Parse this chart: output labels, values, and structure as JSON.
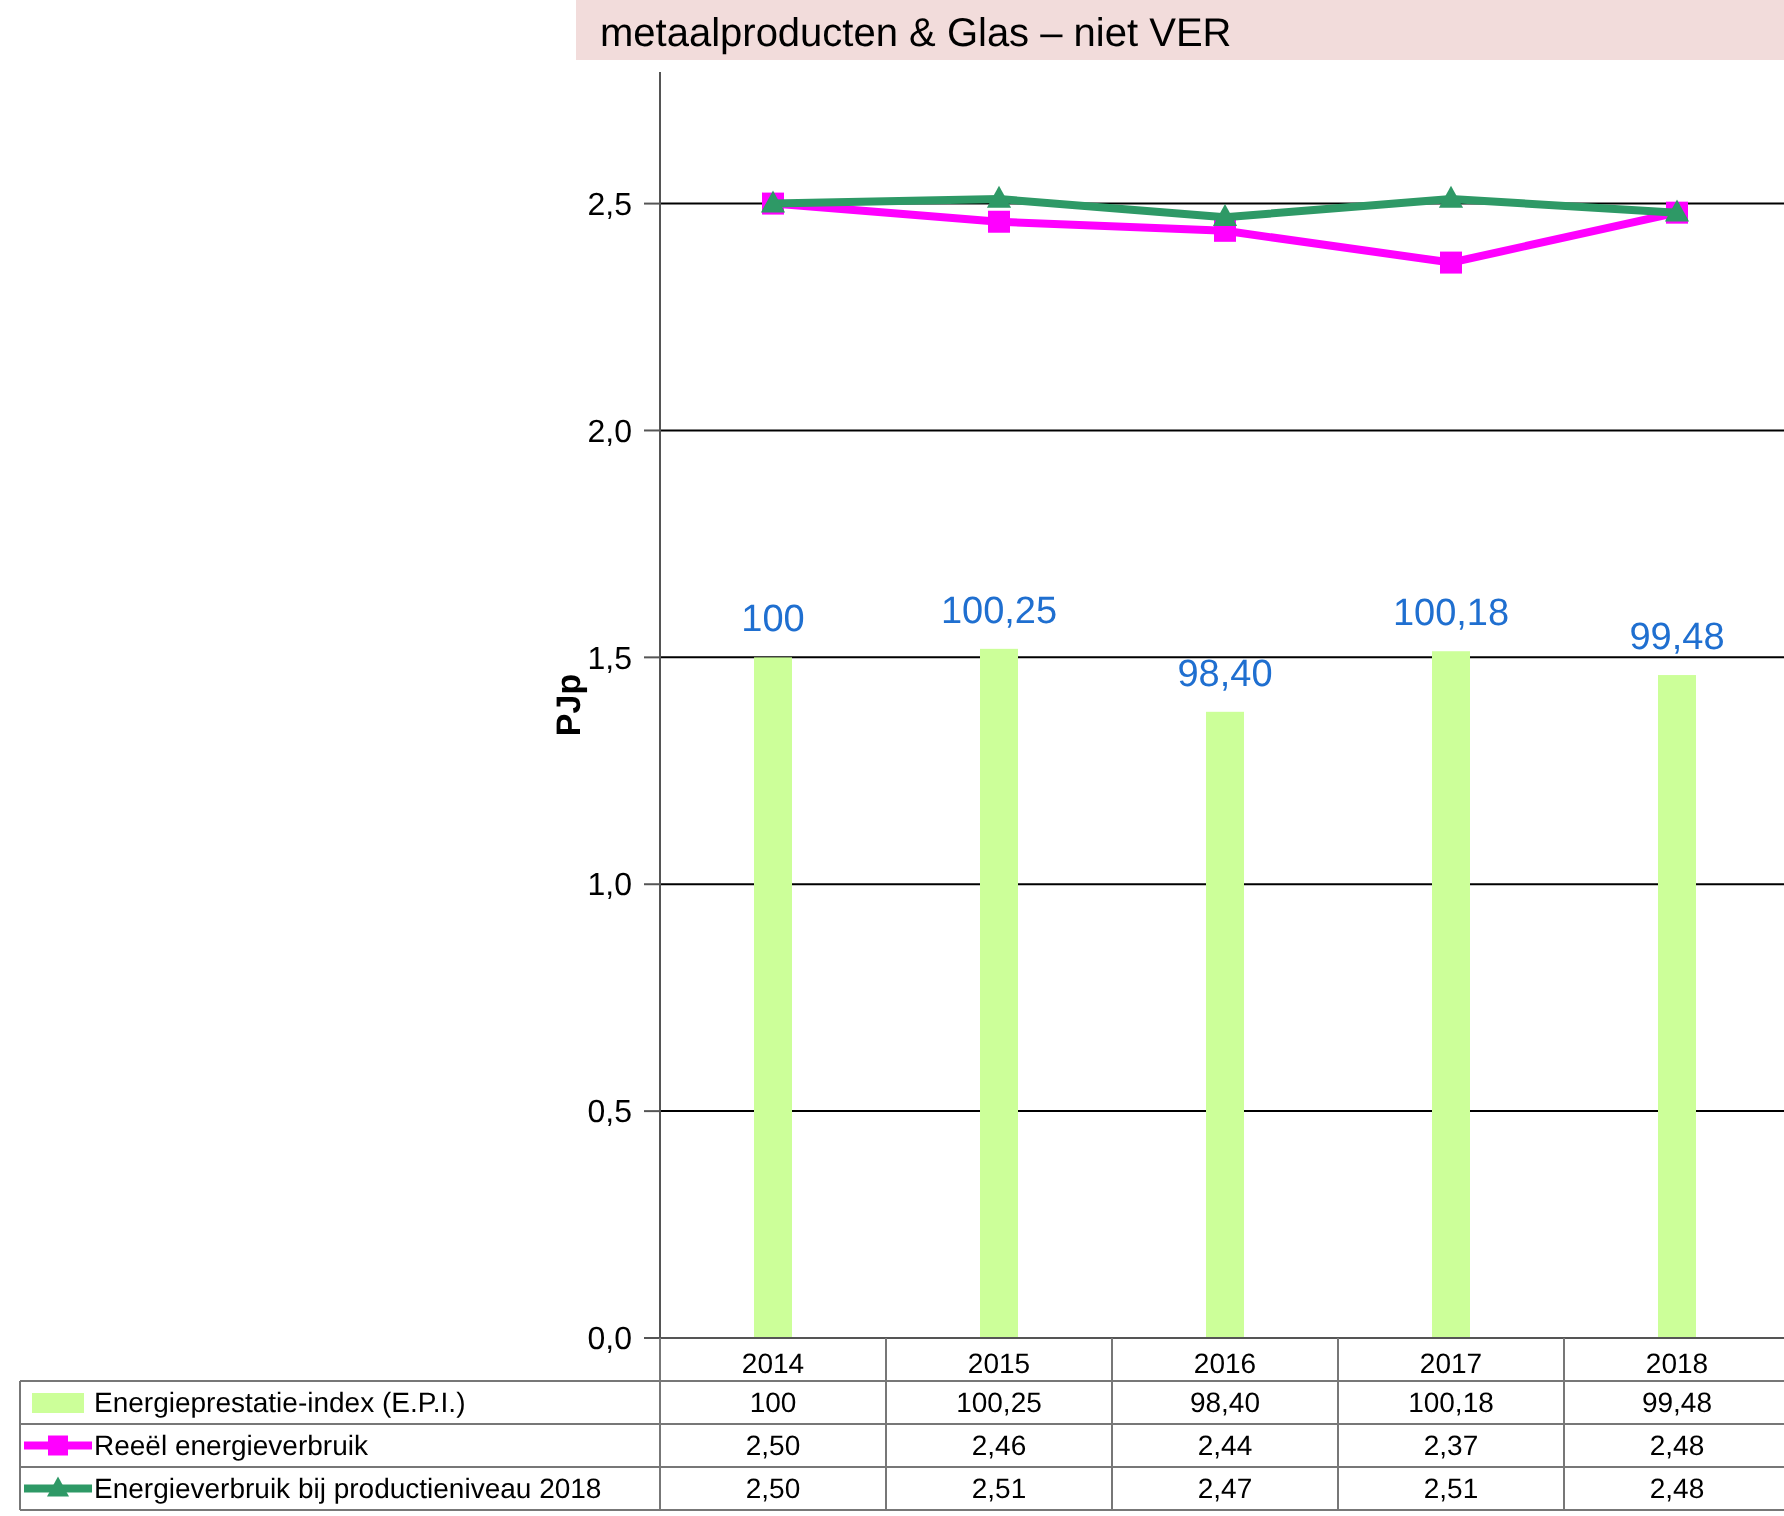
{
  "chart_data": {
    "type": "bar",
    "title": "metaalproducten & Glas – niet VER",
    "ylabel": "PJp",
    "categories": [
      "2014",
      "2015",
      "2016",
      "2017",
      "2018"
    ],
    "series": [
      {
        "name": "Energieprestatie-index (E.P.I.)",
        "axis": "y2",
        "color": "#ccff99",
        "values": [
          100,
          100.25,
          98.4,
          100.18,
          99.48
        ],
        "value_labels": [
          "100",
          "100,25",
          "98,40",
          "100,18",
          "99,48"
        ]
      },
      {
        "name": "Reeël energieverbruik",
        "type": "line",
        "color": "#ff00ff",
        "marker": "square",
        "values": [
          2.5,
          2.46,
          2.44,
          2.37,
          2.48
        ],
        "value_labels": [
          "2,50",
          "2,46",
          "2,44",
          "2,37",
          "2,48"
        ]
      },
      {
        "name": "Energieverbruik bij productieniveau 2018",
        "type": "line",
        "color": "#2e9966",
        "marker": "triangle",
        "values": [
          2.5,
          2.51,
          2.47,
          2.51,
          2.48
        ],
        "value_labels": [
          "2,50",
          "2,51",
          "2,47",
          "2,51",
          "2,48"
        ]
      }
    ],
    "ylim": [
      0,
      2.79
    ],
    "yticks": [
      {
        "value": 0,
        "label": "0,0"
      },
      {
        "value": 0.5,
        "label": "0,5"
      },
      {
        "value": 1,
        "label": "1,0"
      },
      {
        "value": 1.5,
        "label": "1,5"
      },
      {
        "value": 2,
        "label": "2,0"
      },
      {
        "value": 2.5,
        "label": "2,5"
      }
    ],
    "y2lim": [
      80,
      117.2
    ],
    "grid": "y",
    "legend": "bottom",
    "data_labels": true,
    "line_style": "solid"
  }
}
